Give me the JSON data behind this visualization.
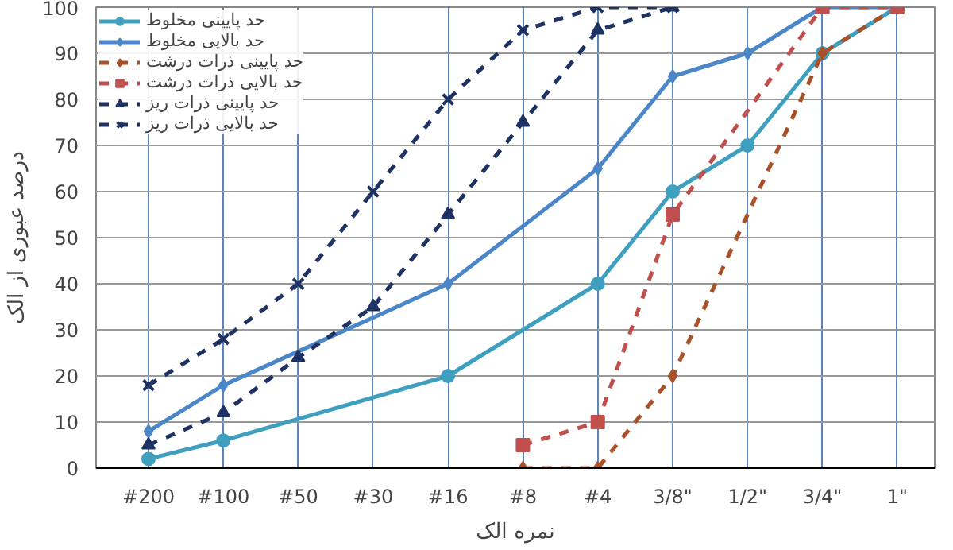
{
  "chart_data": {
    "type": "line",
    "xlabel": "نمره الک",
    "ylabel": "درصد عبوری از الک",
    "ylim": [
      0,
      100
    ],
    "categories": [
      "#200",
      "#100",
      "#50",
      "#30",
      "#16",
      "#8",
      "#4",
      "3/8\"",
      "1/2\"",
      "3/4\"",
      "1\""
    ],
    "yticks": [
      0,
      10,
      20,
      30,
      40,
      50,
      60,
      70,
      80,
      90,
      100
    ],
    "grid": true,
    "legend": "top left",
    "series": [
      {
        "name": "حد پایینی مخلوط",
        "color": "#3f9fbf",
        "marker": "circle",
        "line_style": "solid",
        "values": [
          2,
          6,
          null,
          null,
          20,
          null,
          40,
          60,
          70,
          90,
          100
        ]
      },
      {
        "name": "حد بالایی مخلوط",
        "color": "#4a86c8",
        "marker": "diamond",
        "line_style": "solid",
        "values": [
          8,
          18,
          null,
          null,
          40,
          null,
          65,
          85,
          90,
          100,
          100
        ]
      },
      {
        "name": "حد پایینی ذرات درشت",
        "color": "#a9522a",
        "marker": "diamond",
        "line_style": "dashed",
        "values": [
          null,
          null,
          null,
          null,
          null,
          0,
          0,
          20,
          null,
          90,
          100
        ]
      },
      {
        "name": "حد بالایی ذرات درشت",
        "color": "#c0504d",
        "marker": "square",
        "line_style": "dashed",
        "values": [
          null,
          null,
          null,
          null,
          null,
          5,
          10,
          55,
          null,
          100,
          100
        ]
      },
      {
        "name": "حد پایینی ذرات ریز",
        "color": "#1f3264",
        "marker": "triangle",
        "line_style": "dashed",
        "values": [
          5,
          12,
          24,
          35,
          55,
          75,
          95,
          100,
          null,
          null,
          null
        ]
      },
      {
        "name": "حد بالایی ذرات ریز",
        "color": "#1f3264",
        "marker": "cross",
        "line_style": "dashed",
        "values": [
          18,
          28,
          40,
          60,
          80,
          95,
          100,
          100,
          null,
          null,
          null
        ]
      }
    ]
  }
}
